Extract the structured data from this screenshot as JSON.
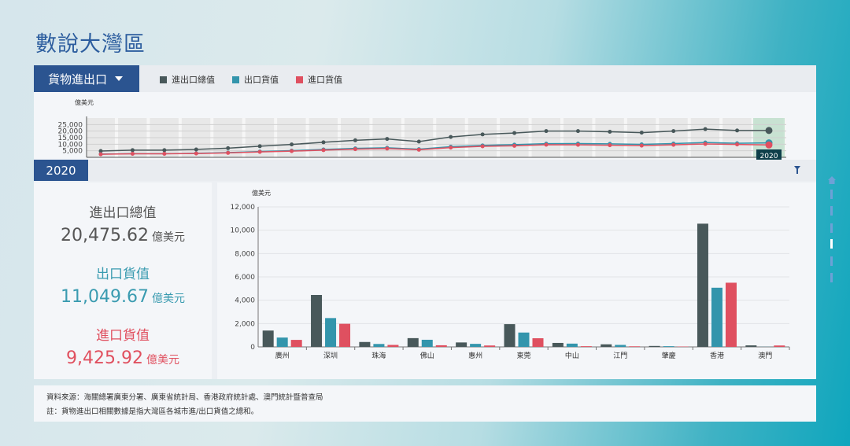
{
  "page_title": "數說大灣區",
  "dropdown": {
    "label": "貨物進出口"
  },
  "legend": [
    {
      "label": "進出口總值",
      "color": "#48585a"
    },
    {
      "label": "出口貨值",
      "color": "#3395ac"
    },
    {
      "label": "進口貨值",
      "color": "#df5060"
    }
  ],
  "timeline": {
    "unit": "億美元",
    "yticks": [
      "25,000",
      "20,000",
      "15,000",
      "10,000",
      "5,000"
    ],
    "selected_label": "2020",
    "total": [
      4800,
      5500,
      5500,
      6000,
      7000,
      8500,
      9800,
      11500,
      13000,
      14000,
      12000,
      15500,
      17500,
      18500,
      20000,
      20000,
      19500,
      18800,
      20000,
      21500,
      20500,
      20475.62
    ],
    "export": [
      2500,
      2800,
      2800,
      3100,
      3600,
      4400,
      5100,
      6000,
      6800,
      7300,
      6200,
      8100,
      9100,
      9700,
      10400,
      10500,
      10300,
      9900,
      10500,
      11300,
      10700,
      11049.67
    ],
    "import": [
      2300,
      2700,
      2700,
      2900,
      3400,
      4100,
      4700,
      5500,
      6200,
      6700,
      5800,
      7400,
      8400,
      8800,
      9600,
      9500,
      9200,
      8900,
      9500,
      10200,
      9800,
      9425.92
    ]
  },
  "year": "2020",
  "stats": [
    {
      "label": "進出口總值",
      "value": "20,475.62",
      "unit": "億美元",
      "color": "#555"
    },
    {
      "label": "出口貨值",
      "value": "11,049.67",
      "unit": "億美元",
      "color": "#3a9bb0"
    },
    {
      "label": "進口貨值",
      "value": "9,425.92",
      "unit": "億美元",
      "color": "#e0505f"
    }
  ],
  "chart_data": {
    "type": "bar",
    "ylabel": "億美元",
    "ylim": [
      0,
      12000
    ],
    "yticks": [
      "0",
      "2,000",
      "4,000",
      "6,000",
      "8,000",
      "10,000",
      "12,000"
    ],
    "categories": [
      "廣州",
      "深圳",
      "珠海",
      "佛山",
      "惠州",
      "東莞",
      "中山",
      "江門",
      "肇慶",
      "香港",
      "澳門"
    ],
    "series": [
      {
        "name": "進出口總值",
        "color": "#48585a",
        "values": [
          1400,
          4450,
          420,
          750,
          380,
          1950,
          340,
          220,
          80,
          10560,
          130
        ]
      },
      {
        "name": "出口貨值",
        "color": "#3395ac",
        "values": [
          800,
          2470,
          250,
          610,
          260,
          1230,
          280,
          170,
          60,
          5070,
          10
        ]
      },
      {
        "name": "進口貨值",
        "color": "#df5060",
        "values": [
          600,
          1980,
          170,
          140,
          120,
          740,
          60,
          50,
          30,
          5500,
          120
        ]
      }
    ]
  },
  "footer": {
    "source": "資料來源：海關總署廣東分署、廣東省統計局、香港政府統計處、澳門統計暨普查局",
    "note": "註：貨物進出口相關數據是指大灣區各城市進/出口貨值之總和。"
  }
}
